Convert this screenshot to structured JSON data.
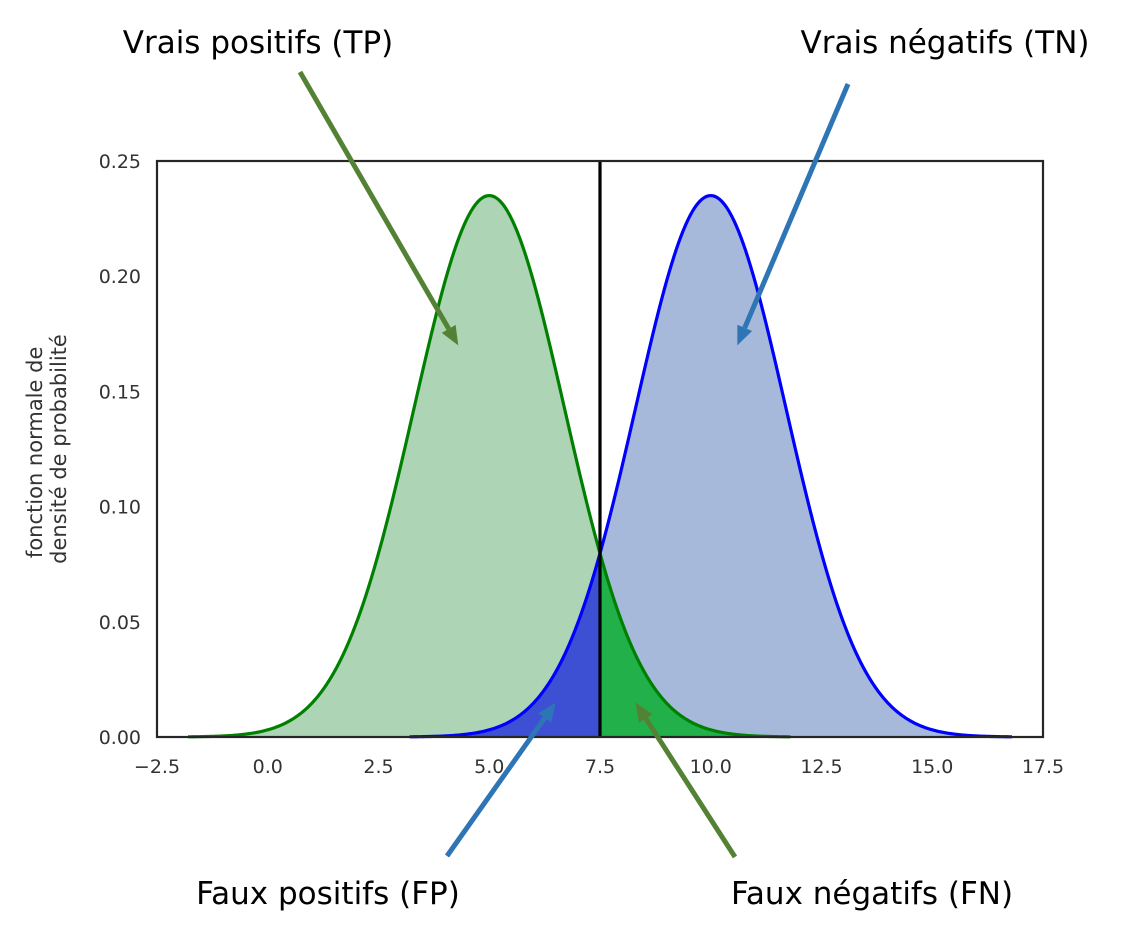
{
  "chart_data": {
    "type": "area",
    "title": "",
    "xlabel": "",
    "ylabel": [
      "fonction normale de",
      "densité de probabilité"
    ],
    "xlim": [
      -2.5,
      17.5
    ],
    "ylim": [
      0,
      0.25
    ],
    "xticks": [
      -2.5,
      0.0,
      2.5,
      5.0,
      7.5,
      10.0,
      12.5,
      15.0,
      17.5
    ],
    "xtick_labels": [
      "−2.5",
      "0.0",
      "2.5",
      "5.0",
      "7.5",
      "10.0",
      "12.5",
      "15.0",
      "17.5"
    ],
    "yticks": [
      0.0,
      0.05,
      0.1,
      0.15,
      0.2,
      0.25
    ],
    "ytick_labels": [
      "0.00",
      "0.05",
      "0.10",
      "0.15",
      "0.20",
      "0.25"
    ],
    "grid": false,
    "threshold": 7.5,
    "series": [
      {
        "distribution": "normal",
        "mean": 5.0,
        "sd": 1.7,
        "x_range": [
          -1.8,
          11.8
        ],
        "peak": 0.235,
        "line_color": "#008000",
        "fill_color": "#acd4b5",
        "tail_fill_color": "#22b04b"
      },
      {
        "distribution": "normal",
        "mean": 10.0,
        "sd": 1.7,
        "x_range": [
          3.2,
          16.8
        ],
        "peak": 0.235,
        "line_color": "#0000ff",
        "fill_color": "#a6b9da",
        "tail_fill_color": "#3d4fd3"
      }
    ],
    "annotations": [
      {
        "key": "tp",
        "text": "Vrais positifs (TP)",
        "color": "#548235",
        "points_to": [
          4.3,
          0.17
        ]
      },
      {
        "key": "tn",
        "text": "Vrais négatifs (TN)",
        "color": "#2e75b6",
        "points_to": [
          10.6,
          0.17
        ]
      },
      {
        "key": "fp",
        "text": "Faux positifs (FP)",
        "color": "#2e75b6",
        "points_to": [
          6.5,
          0.015
        ]
      },
      {
        "key": "fn",
        "text": "Faux négatifs (FN)",
        "color": "#548235",
        "points_to": [
          8.3,
          0.015
        ]
      }
    ]
  }
}
